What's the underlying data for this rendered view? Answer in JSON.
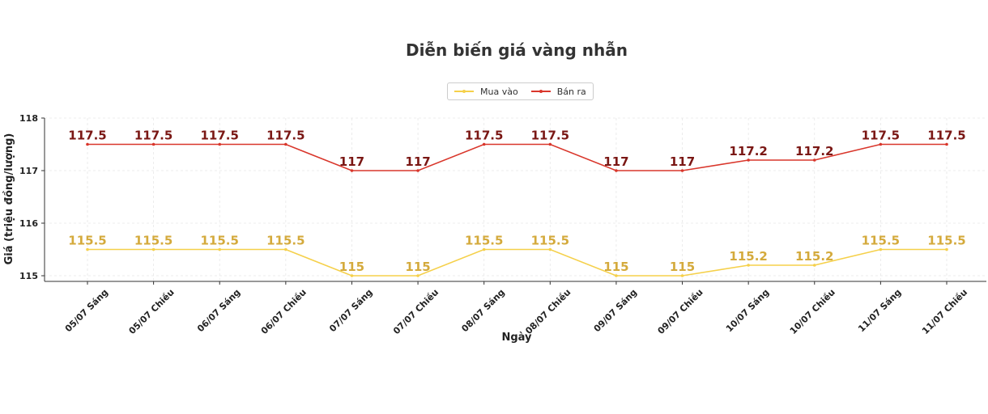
{
  "chart_data": {
    "type": "line",
    "title": "Diễn biến giá vàng nhẫn",
    "xlabel": "Ngày",
    "ylabel": "Giá (triệu đồng/lượng)",
    "categories": [
      "05/07 Sáng",
      "05/07 Chiều",
      "06/07 Sáng",
      "06/07 Chiều",
      "07/07 Sáng",
      "07/07 Chiều",
      "08/07 Sáng",
      "08/07 Chiều",
      "09/07 Sáng",
      "09/07 Chiều",
      "10/07 Sáng",
      "10/07 Chiều",
      "11/07 Sáng",
      "11/07 Chiều"
    ],
    "yticks": [
      "115",
      "116",
      "117",
      "118"
    ],
    "ylim": [
      114.9,
      118
    ],
    "grid": true,
    "legend_position": "top-center",
    "series": [
      {
        "name": "Mua vào",
        "color": "#f5d04a",
        "label_color": "#d4aa3c",
        "values": [
          115.5,
          115.5,
          115.5,
          115.5,
          115,
          115,
          115.5,
          115.5,
          115,
          115,
          115.2,
          115.2,
          115.5,
          115.5
        ],
        "labels": [
          "115.5",
          "115.5",
          "115.5",
          "115.5",
          "115",
          "115",
          "115.5",
          "115.5",
          "115",
          "115",
          "115.2",
          "115.2",
          "115.5",
          "115.5"
        ]
      },
      {
        "name": "Bán ra",
        "color": "#d9362b",
        "label_color": "#7a1714",
        "values": [
          117.5,
          117.5,
          117.5,
          117.5,
          117,
          117,
          117.5,
          117.5,
          117,
          117,
          117.2,
          117.2,
          117.5,
          117.5
        ],
        "labels": [
          "117.5",
          "117.5",
          "117.5",
          "117.5",
          "117",
          "117",
          "117.5",
          "117.5",
          "117",
          "117",
          "117.2",
          "117.2",
          "117.5",
          "117.5"
        ]
      }
    ]
  }
}
